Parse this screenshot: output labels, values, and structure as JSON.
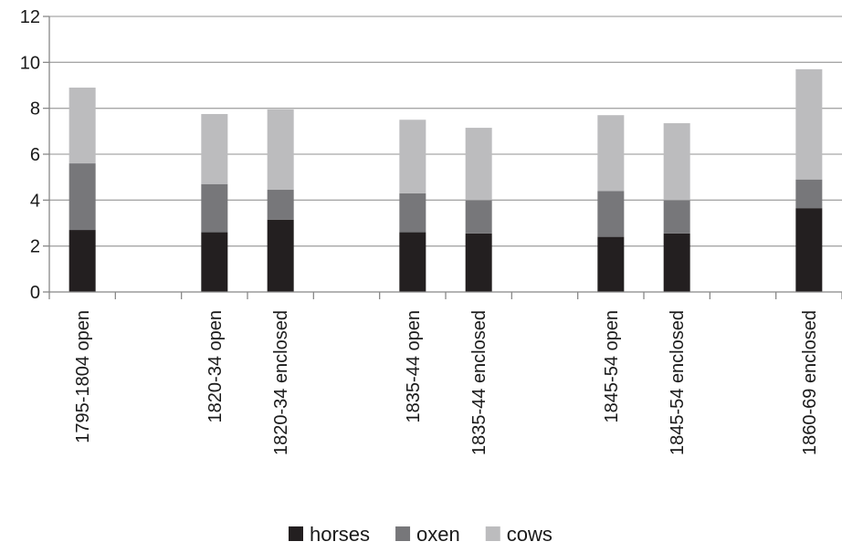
{
  "chart_data": {
    "type": "bar",
    "stacked": true,
    "title": "",
    "xlabel": "",
    "ylabel": "",
    "ylim": [
      0,
      12
    ],
    "yticks": [
      0,
      2,
      4,
      6,
      8,
      10,
      12
    ],
    "grid": true,
    "legend_position": "bottom",
    "slots": [
      "1795-1804 open",
      "",
      "1820-34 open",
      "1820-34 enclosed",
      "",
      "1835-44 open",
      "1835-44 enclosed",
      "",
      "1845-54 open",
      "1845-54 enclosed",
      "",
      "1860-69 enclosed"
    ],
    "series": [
      {
        "name": "horses",
        "color": "#231f20",
        "values": [
          2.7,
          null,
          2.6,
          3.15,
          null,
          2.6,
          2.55,
          null,
          2.4,
          2.55,
          null,
          3.65
        ]
      },
      {
        "name": "oxen",
        "color": "#77777a",
        "values": [
          2.9,
          null,
          2.1,
          1.3,
          null,
          1.7,
          1.45,
          null,
          2.0,
          1.45,
          null,
          1.25
        ]
      },
      {
        "name": "cows",
        "color": "#bcbcbe",
        "values": [
          3.3,
          null,
          3.05,
          3.5,
          null,
          3.2,
          3.15,
          null,
          3.3,
          3.35,
          null,
          4.8
        ]
      }
    ]
  }
}
